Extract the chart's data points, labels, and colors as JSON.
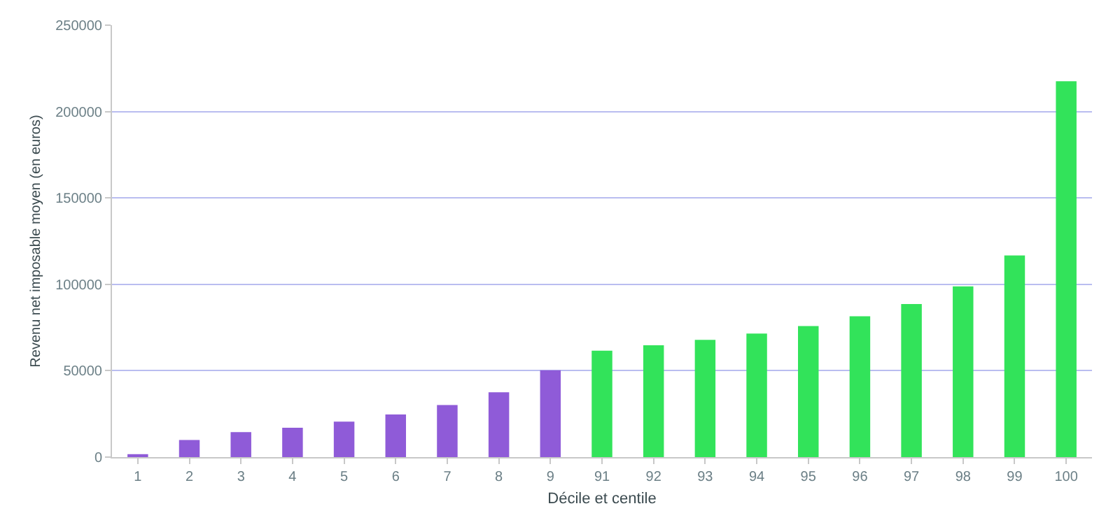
{
  "chart_data": {
    "type": "bar",
    "xlabel": "Décile et centile",
    "ylabel": "Revenu net imposable moyen (en euros)",
    "categories": [
      "1",
      "2",
      "3",
      "4",
      "5",
      "6",
      "7",
      "8",
      "9",
      "91",
      "92",
      "93",
      "94",
      "95",
      "96",
      "97",
      "98",
      "99",
      "100"
    ],
    "values": [
      1700,
      9900,
      14500,
      17000,
      20500,
      24700,
      30100,
      37500,
      50300,
      61600,
      64700,
      67900,
      71500,
      75800,
      81500,
      88600,
      98800,
      116700,
      217500
    ],
    "colors": [
      "#8f5bd8",
      "#8f5bd8",
      "#8f5bd8",
      "#8f5bd8",
      "#8f5bd8",
      "#8f5bd8",
      "#8f5bd8",
      "#8f5bd8",
      "#8f5bd8",
      "#32e35a",
      "#32e35a",
      "#32e35a",
      "#32e35a",
      "#32e35a",
      "#32e35a",
      "#32e35a",
      "#32e35a",
      "#32e35a",
      "#32e35a"
    ],
    "ylim": [
      0,
      250000
    ],
    "yticks": [
      0,
      50000,
      100000,
      150000,
      200000,
      250000
    ],
    "grid": "y",
    "legend": false
  }
}
